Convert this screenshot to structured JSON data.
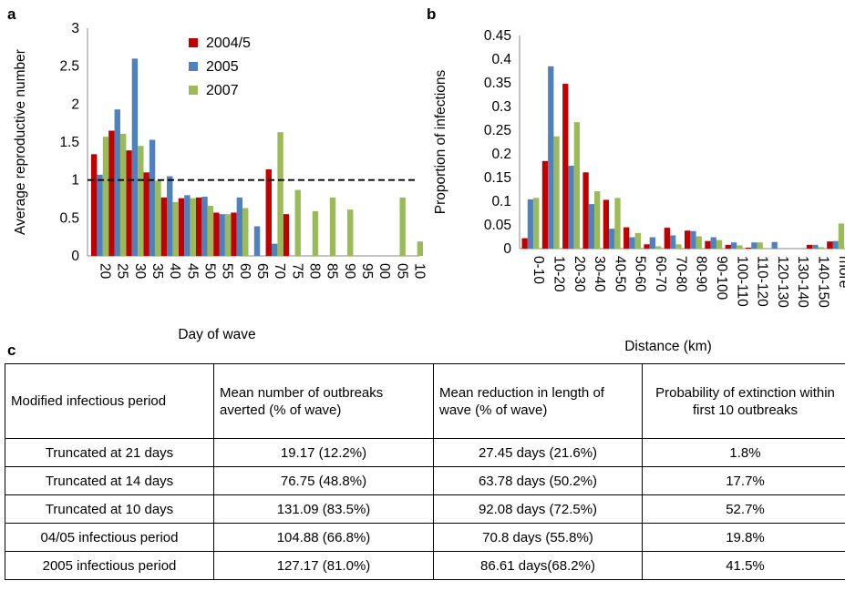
{
  "colors": {
    "s2004": "#C00000",
    "s2005": "#4F81BD",
    "s2007": "#9BBB59",
    "dash": "#000000"
  },
  "panel_a": {
    "letter": "a"
  },
  "panel_b": {
    "letter": "b"
  },
  "panel_c": {
    "letter": "c"
  },
  "chart_data": [
    {
      "type": "bar",
      "ylabel": "Average reproductive number",
      "xlabel": "Day of wave",
      "ylim": [
        0,
        3
      ],
      "yticks": [
        "0",
        "0.5",
        "1",
        "1.5",
        "2",
        "2.5",
        "3"
      ],
      "legend_position": "top-center",
      "reference_line": {
        "y": 1,
        "style": "dashed"
      },
      "categories": [
        "20",
        "25",
        "30",
        "35",
        "40",
        "45",
        "50",
        "55",
        "60",
        "65",
        "70",
        "75",
        "80",
        "85",
        "90",
        "95",
        "00",
        "05",
        "10"
      ],
      "series": [
        {
          "name": "2004/5",
          "values": [
            1.34,
            1.65,
            1.39,
            1.1,
            0.77,
            0.76,
            0.77,
            0.57,
            0.57,
            null,
            1.14,
            0.55,
            null,
            null,
            null,
            null,
            null,
            null,
            null
          ]
        },
        {
          "name": "2005",
          "values": [
            1.07,
            1.93,
            2.6,
            1.53,
            1.05,
            0.8,
            0.78,
            0.55,
            0.77,
            0.39,
            0.16,
            null,
            null,
            null,
            null,
            null,
            null,
            null,
            null
          ]
        },
        {
          "name": "2007",
          "values": [
            1.57,
            1.61,
            1.45,
            0.99,
            0.71,
            0.76,
            0.66,
            0.55,
            0.63,
            null,
            1.63,
            0.87,
            0.59,
            0.77,
            0.61,
            null,
            null,
            0.77,
            0.19
          ]
        }
      ]
    },
    {
      "type": "bar",
      "ylabel": "Proportion of infections",
      "xlabel": "Distance (km)",
      "ylim": [
        0,
        0.45
      ],
      "yticks": [
        "0",
        "0.05",
        "0.1",
        "0.15",
        "0.2",
        "0.25",
        "0.3",
        "0.35",
        "0.4",
        "0.45"
      ],
      "categories": [
        "0-10",
        "10-20",
        "20-30",
        "30-40",
        "40-50",
        "50-60",
        "60-70",
        "70-80",
        "80-90",
        "90-100",
        "100-110",
        "110-120",
        "120-130",
        "130-140",
        "140-150",
        "more"
      ],
      "series": [
        {
          "name": "2004/5",
          "values": [
            0.022,
            0.185,
            0.348,
            0.161,
            0.103,
            0.045,
            0.009,
            0.044,
            0.038,
            0.016,
            0.008,
            0.002,
            0.0,
            0.0,
            0.008,
            0.015
          ]
        },
        {
          "name": "2005",
          "values": [
            0.104,
            0.385,
            0.175,
            0.094,
            0.042,
            0.024,
            0.024,
            0.028,
            0.037,
            0.024,
            0.013,
            0.013,
            0.014,
            0.0,
            0.008,
            0.016
          ]
        },
        {
          "name": "2007",
          "values": [
            0.107,
            0.237,
            0.267,
            0.121,
            0.107,
            0.033,
            0.005,
            0.009,
            0.026,
            0.018,
            0.007,
            0.013,
            0.0,
            0.0,
            0.003,
            0.053
          ]
        }
      ]
    }
  ],
  "table": {
    "headers": [
      "Modified infectious period",
      "Mean number of outbreaks averted (% of wave)",
      "Mean reduction in length of wave  (% of wave)",
      "Probability of extinction within first 10 outbreaks"
    ],
    "rows": [
      [
        "Truncated at 21 days",
        "19.17 (12.2%)",
        "27.45 days (21.6%)",
        "1.8%"
      ],
      [
        "Truncated at 14 days",
        "76.75 (48.8%)",
        "63.78 days (50.2%)",
        "17.7%"
      ],
      [
        "Truncated at 10 days",
        "131.09 (83.5%)",
        "92.08 days (72.5%)",
        "52.7%"
      ],
      [
        "04/05 infectious period",
        "104.88 (66.8%)",
        "70.8 days (55.8%)",
        "19.8%"
      ],
      [
        "2005 infectious period",
        "127.17 (81.0%)",
        "86.61 days(68.2%)",
        "41.5%"
      ]
    ]
  }
}
